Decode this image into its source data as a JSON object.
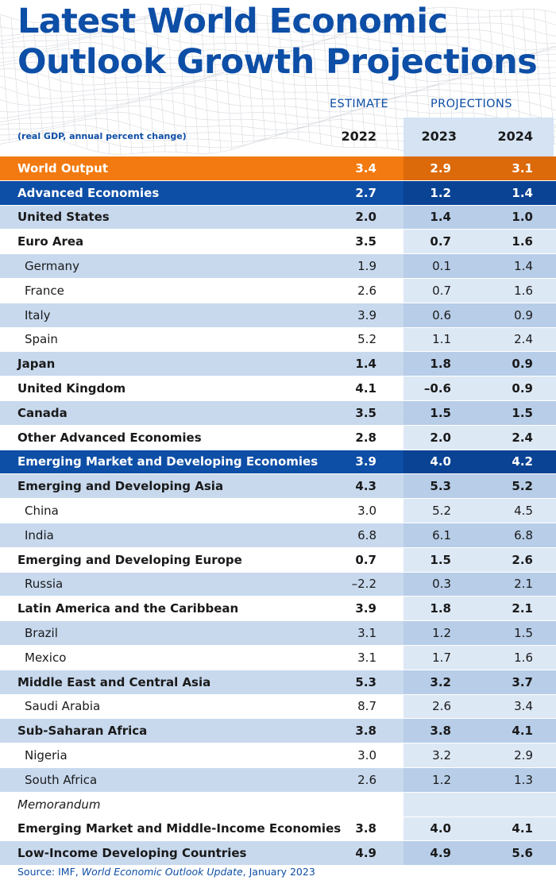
{
  "title_line1": "Latest World Economic",
  "title_line2": "Outlook Growth Projections",
  "header": {
    "estimate": "ESTIMATE",
    "projections": "PROJECTIONS"
  },
  "units": "(real GDP, annual percent change)",
  "colors": {
    "title": "#0d4ea6",
    "world_output_row": "#f27a10",
    "group_row": "#0d4ea6",
    "light_row": "#c8d9ee",
    "projection_band": "#d5e3f3"
  },
  "source": {
    "prefix": "Source: IMF, ",
    "publication": "World Economic Outlook Update",
    "suffix": ", January 2023"
  },
  "chart_data": {
    "type": "table",
    "columns": [
      "2022",
      "2023",
      "2024"
    ],
    "column_groups": [
      {
        "label": "ESTIMATE",
        "columns": [
          "2022"
        ]
      },
      {
        "label": "PROJECTIONS",
        "columns": [
          "2023",
          "2024"
        ]
      }
    ],
    "rows": [
      {
        "label": "World Output",
        "values": [
          "3.4",
          "2.9",
          "3.1"
        ],
        "style": "world",
        "indent": false,
        "bold": true
      },
      {
        "label": "Advanced Economies",
        "values": [
          "2.7",
          "1.2",
          "1.4"
        ],
        "style": "group",
        "indent": false,
        "bold": true
      },
      {
        "label": "United States",
        "values": [
          "2.0",
          "1.4",
          "1.0"
        ],
        "style": "light",
        "indent": false,
        "bold": true
      },
      {
        "label": "Euro Area",
        "values": [
          "3.5",
          "0.7",
          "1.6"
        ],
        "style": "white",
        "indent": false,
        "bold": true
      },
      {
        "label": "Germany",
        "values": [
          "1.9",
          "0.1",
          "1.4"
        ],
        "style": "light",
        "indent": true,
        "bold": false
      },
      {
        "label": "France",
        "values": [
          "2.6",
          "0.7",
          "1.6"
        ],
        "style": "white",
        "indent": true,
        "bold": false
      },
      {
        "label": "Italy",
        "values": [
          "3.9",
          "0.6",
          "0.9"
        ],
        "style": "light",
        "indent": true,
        "bold": false
      },
      {
        "label": "Spain",
        "values": [
          "5.2",
          "1.1",
          "2.4"
        ],
        "style": "white",
        "indent": true,
        "bold": false
      },
      {
        "label": "Japan",
        "values": [
          "1.4",
          "1.8",
          "0.9"
        ],
        "style": "light",
        "indent": false,
        "bold": true
      },
      {
        "label": "United Kingdom",
        "values": [
          "4.1",
          "–0.6",
          "0.9"
        ],
        "style": "white",
        "indent": false,
        "bold": true
      },
      {
        "label": "Canada",
        "values": [
          "3.5",
          "1.5",
          "1.5"
        ],
        "style": "light",
        "indent": false,
        "bold": true
      },
      {
        "label": "Other Advanced Economies",
        "values": [
          "2.8",
          "2.0",
          "2.4"
        ],
        "style": "white",
        "indent": false,
        "bold": true
      },
      {
        "label": "Emerging Market and Developing Economies",
        "values": [
          "3.9",
          "4.0",
          "4.2"
        ],
        "style": "group",
        "indent": false,
        "bold": true
      },
      {
        "label": "Emerging and Developing Asia",
        "values": [
          "4.3",
          "5.3",
          "5.2"
        ],
        "style": "light",
        "indent": false,
        "bold": true
      },
      {
        "label": "China",
        "values": [
          "3.0",
          "5.2",
          "4.5"
        ],
        "style": "white",
        "indent": true,
        "bold": false
      },
      {
        "label": "India",
        "values": [
          "6.8",
          "6.1",
          "6.8"
        ],
        "style": "light",
        "indent": true,
        "bold": false
      },
      {
        "label": "Emerging and Developing Europe",
        "values": [
          "0.7",
          "1.5",
          "2.6"
        ],
        "style": "white",
        "indent": false,
        "bold": true
      },
      {
        "label": "Russia",
        "values": [
          "–2.2",
          "0.3",
          "2.1"
        ],
        "style": "light",
        "indent": true,
        "bold": false
      },
      {
        "label": "Latin America and the Caribbean",
        "values": [
          "3.9",
          "1.8",
          "2.1"
        ],
        "style": "white",
        "indent": false,
        "bold": true
      },
      {
        "label": "Brazil",
        "values": [
          "3.1",
          "1.2",
          "1.5"
        ],
        "style": "light",
        "indent": true,
        "bold": false
      },
      {
        "label": "Mexico",
        "values": [
          "3.1",
          "1.7",
          "1.6"
        ],
        "style": "white",
        "indent": true,
        "bold": false
      },
      {
        "label": "Middle East and Central Asia",
        "values": [
          "5.3",
          "3.2",
          "3.7"
        ],
        "style": "light",
        "indent": false,
        "bold": true
      },
      {
        "label": "Saudi Arabia",
        "values": [
          "8.7",
          "2.6",
          "3.4"
        ],
        "style": "white",
        "indent": true,
        "bold": false
      },
      {
        "label": "Sub-Saharan Africa",
        "values": [
          "3.8",
          "3.8",
          "4.1"
        ],
        "style": "light",
        "indent": false,
        "bold": true
      },
      {
        "label": "Nigeria",
        "values": [
          "3.0",
          "3.2",
          "2.9"
        ],
        "style": "white",
        "indent": true,
        "bold": false
      },
      {
        "label": "South Africa",
        "values": [
          "2.6",
          "1.2",
          "1.3"
        ],
        "style": "light",
        "indent": true,
        "bold": false
      },
      {
        "label": "Memorandum",
        "values": [
          "",
          "",
          ""
        ],
        "style": "memo",
        "indent": false,
        "bold": false
      },
      {
        "label": "Emerging Market and Middle-Income Economies",
        "values": [
          "3.8",
          "4.0",
          "4.1"
        ],
        "style": "white",
        "indent": false,
        "bold": true
      },
      {
        "label": "Low-Income Developing Countries",
        "values": [
          "4.9",
          "4.9",
          "5.6"
        ],
        "style": "light",
        "indent": false,
        "bold": true
      }
    ]
  }
}
